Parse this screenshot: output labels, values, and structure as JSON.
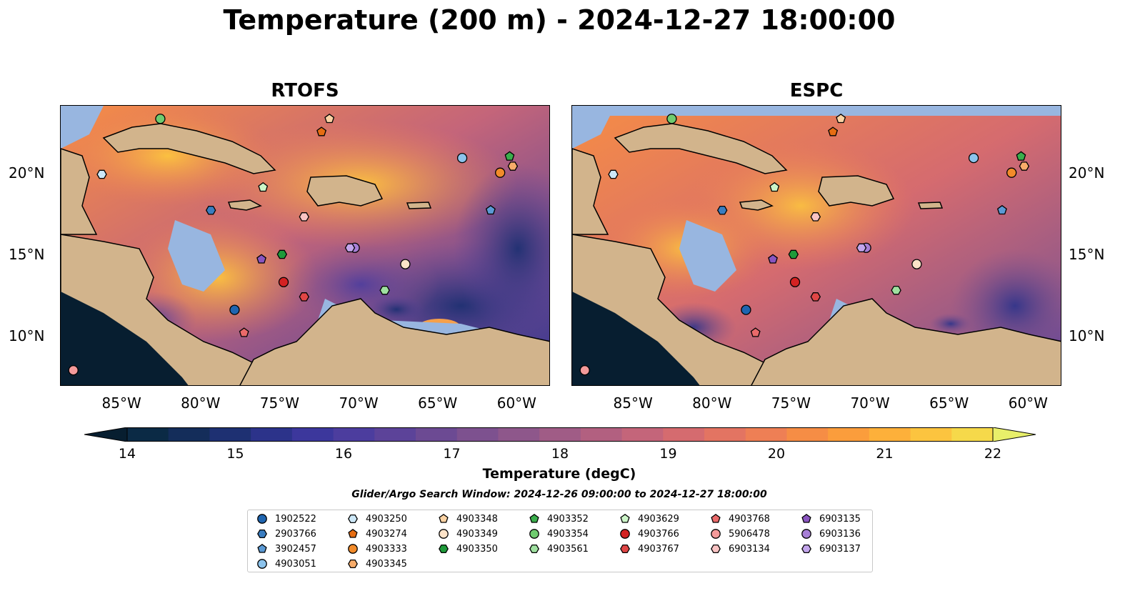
{
  "title": "Temperature (200 m) - 2024-12-27 18:00:00",
  "panels": [
    {
      "id": "rtofs",
      "title": "RTOFS"
    },
    {
      "id": "espc",
      "title": "ESPC"
    }
  ],
  "map_extent": {
    "lon": [
      -89,
      -58
    ],
    "lat": [
      7,
      24.2
    ]
  },
  "lon_ticks": [
    {
      "value": -85,
      "label": "85°W"
    },
    {
      "value": -80,
      "label": "80°W"
    },
    {
      "value": -75,
      "label": "75°W"
    },
    {
      "value": -70,
      "label": "70°W"
    },
    {
      "value": -65,
      "label": "65°W"
    },
    {
      "value": -60,
      "label": "60°W"
    }
  ],
  "lat_ticks": [
    {
      "value": 20,
      "label": "20°N"
    },
    {
      "value": 15,
      "label": "15°N"
    },
    {
      "value": 10,
      "label": "10°N"
    }
  ],
  "colorbar": {
    "min": 14,
    "max": 22,
    "ticks": [
      "14",
      "15",
      "16",
      "17",
      "18",
      "19",
      "20",
      "21",
      "22"
    ],
    "label": "Temperature (degC)",
    "colors": [
      "#0b2a45",
      "#142d5a",
      "#1e3072",
      "#2c338a",
      "#3c379c",
      "#4c3d9e",
      "#5c4399",
      "#6c4a93",
      "#7d518f",
      "#8e578b",
      "#a05c86",
      "#b26080",
      "#c4657a",
      "#d56b6f",
      "#e37462",
      "#ee7f55",
      "#f68d45",
      "#fb9d3c",
      "#fdb03a",
      "#fcc43f",
      "#f6d94a"
    ],
    "under_color": "#071e30",
    "over_color": "#e8ef6a"
  },
  "search_window": "Glider/Argo Search Window: 2024-12-26 09:00:00 to 2024-12-27 18:00:00",
  "legend": [
    {
      "id": "1902522",
      "marker": "circle",
      "color": "#1f65b0"
    },
    {
      "id": "2903766",
      "marker": "hexagon",
      "color": "#3a7dc0"
    },
    {
      "id": "3902457",
      "marker": "pentagon",
      "color": "#5b9ad5"
    },
    {
      "id": "4903051",
      "marker": "circle",
      "color": "#8cc3ec"
    },
    {
      "id": "4903250",
      "marker": "hexagon",
      "color": "#cde8f8"
    },
    {
      "id": "4903274",
      "marker": "pentagon",
      "color": "#e66d12"
    },
    {
      "id": "4903333",
      "marker": "circle",
      "color": "#f28b2a"
    },
    {
      "id": "4903345",
      "marker": "hexagon",
      "color": "#f8ac6a"
    },
    {
      "id": "4903348",
      "marker": "pentagon",
      "color": "#fbd3a4"
    },
    {
      "id": "4903349",
      "marker": "circle",
      "color": "#fde3c8"
    },
    {
      "id": "4903350",
      "marker": "hexagon",
      "color": "#1f9a3a"
    },
    {
      "id": "4903352",
      "marker": "pentagon",
      "color": "#3aae4c"
    },
    {
      "id": "4903354",
      "marker": "circle",
      "color": "#6fcb6f"
    },
    {
      "id": "4903561",
      "marker": "hexagon",
      "color": "#9fe0a0"
    },
    {
      "id": "4903629",
      "marker": "pentagon",
      "color": "#ccf5c8"
    },
    {
      "id": "4903766",
      "marker": "circle",
      "color": "#d42222"
    },
    {
      "id": "4903767",
      "marker": "hexagon",
      "color": "#e04646"
    },
    {
      "id": "4903768",
      "marker": "pentagon",
      "color": "#ea6a6a"
    },
    {
      "id": "5906478",
      "marker": "circle",
      "color": "#f49a9a"
    },
    {
      "id": "6903134",
      "marker": "hexagon",
      "color": "#f9c3c3"
    },
    {
      "id": "6903135",
      "marker": "pentagon",
      "color": "#8a55c0"
    },
    {
      "id": "6903136",
      "marker": "circle",
      "color": "#a77fd6"
    },
    {
      "id": "6903137",
      "marker": "hexagon",
      "color": "#c3a5ec"
    }
  ],
  "float_positions": [
    {
      "id": "1902522",
      "lon": -78.0,
      "lat": 11.7
    },
    {
      "id": "2903766",
      "lon": -79.5,
      "lat": 17.8
    },
    {
      "id": "3902457",
      "lon": -61.8,
      "lat": 17.8
    },
    {
      "id": "4903051",
      "lon": -63.6,
      "lat": 21.0
    },
    {
      "id": "4903250",
      "lon": -86.4,
      "lat": 20.0
    },
    {
      "id": "4903274",
      "lon": -72.5,
      "lat": 22.6
    },
    {
      "id": "4903333",
      "lon": -61.2,
      "lat": 20.1
    },
    {
      "id": "4903345",
      "lon": -60.4,
      "lat": 20.5
    },
    {
      "id": "4903348",
      "lon": -72.0,
      "lat": 23.4
    },
    {
      "id": "4903349",
      "lon": -67.2,
      "lat": 14.5
    },
    {
      "id": "4903350",
      "lon": -75.0,
      "lat": 15.1
    },
    {
      "id": "4903352",
      "lon": -60.6,
      "lat": 21.1
    },
    {
      "id": "4903354",
      "lon": -82.7,
      "lat": 23.4
    },
    {
      "id": "4903561",
      "lon": -68.5,
      "lat": 12.9
    },
    {
      "id": "4903629",
      "lon": -76.2,
      "lat": 19.2
    },
    {
      "id": "4903766",
      "lon": -74.9,
      "lat": 13.4
    },
    {
      "id": "4903767",
      "lon": -73.6,
      "lat": 12.5
    },
    {
      "id": "4903768",
      "lon": -77.4,
      "lat": 10.3
    },
    {
      "id": "5906478",
      "lon": -88.2,
      "lat": 8.0
    },
    {
      "id": "6903134",
      "lon": -73.6,
      "lat": 17.4
    },
    {
      "id": "6903135",
      "lon": -76.3,
      "lat": 14.8
    },
    {
      "id": "6903136",
      "lon": -70.4,
      "lat": 15.5
    },
    {
      "id": "6903137",
      "lon": -70.7,
      "lat": 15.5
    }
  ]
}
